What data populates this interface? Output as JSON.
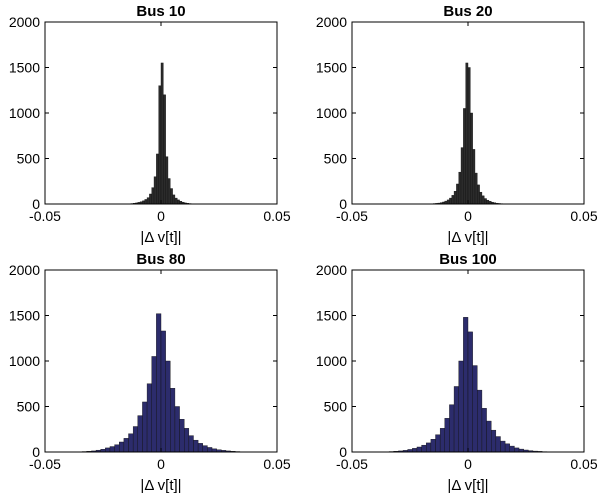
{
  "chart_data": [
    {
      "type": "bar",
      "title": "Bus 10",
      "xlabel": "|Δ v[t]|",
      "ylabel": "",
      "xlim": [
        -0.05,
        0.05
      ],
      "ylim": [
        0,
        2000
      ],
      "xticks": [
        "-0.05",
        "0",
        "0.05"
      ],
      "yticks": [
        "0",
        "500",
        "1000",
        "1500",
        "2000"
      ],
      "bar_color": "#2b2b2b",
      "bin_width": 0.001,
      "bin_centers": [
        -0.0125,
        -0.0115,
        -0.0105,
        -0.0095,
        -0.0085,
        -0.0075,
        -0.0065,
        -0.0055,
        -0.0045,
        -0.0035,
        -0.0025,
        -0.0015,
        -0.0005,
        0.0005,
        0.0015,
        0.0025,
        0.0035,
        0.0045,
        0.0055,
        0.0065,
        0.0075,
        0.0085,
        0.0095,
        0.0105,
        0.0115,
        0.0125
      ],
      "values": [
        5,
        8,
        12,
        18,
        25,
        35,
        50,
        70,
        110,
        180,
        300,
        550,
        1300,
        1550,
        1200,
        520,
        280,
        170,
        100,
        65,
        45,
        30,
        20,
        12,
        8,
        5
      ],
      "grid": false
    },
    {
      "type": "bar",
      "title": "Bus 20",
      "xlabel": "|Δ v[t]|",
      "ylabel": "",
      "xlim": [
        -0.05,
        0.05
      ],
      "ylim": [
        0,
        2000
      ],
      "xticks": [
        "-0.05",
        "0",
        "0.05"
      ],
      "yticks": [
        "0",
        "500",
        "1000",
        "1500",
        "2000"
      ],
      "bar_color": "#2b2b2b",
      "bin_width": 0.001,
      "bin_centers": [
        -0.0145,
        -0.0135,
        -0.0125,
        -0.0115,
        -0.0105,
        -0.0095,
        -0.0085,
        -0.0075,
        -0.0065,
        -0.0055,
        -0.0045,
        -0.0035,
        -0.0025,
        -0.0015,
        -0.0005,
        0.0005,
        0.0015,
        0.0025,
        0.0035,
        0.0045,
        0.0055,
        0.0065,
        0.0075,
        0.0085,
        0.0095,
        0.0105,
        0.0115,
        0.0125,
        0.0135,
        0.0145
      ],
      "values": [
        5,
        7,
        10,
        15,
        22,
        32,
        45,
        65,
        95,
        140,
        220,
        350,
        620,
        1050,
        1550,
        1500,
        1000,
        600,
        340,
        210,
        130,
        90,
        60,
        42,
        30,
        20,
        14,
        9,
        6,
        4
      ],
      "grid": false
    },
    {
      "type": "bar",
      "title": "Bus 80",
      "xlabel": "|Δ v[t]|",
      "ylabel": "",
      "xlim": [
        -0.05,
        0.05
      ],
      "ylim": [
        0,
        2000
      ],
      "xticks": [
        "-0.05",
        "0",
        "0.05"
      ],
      "yticks": [
        "0",
        "500",
        "1000",
        "1500",
        "2000"
      ],
      "bar_color": "#2c2c6c",
      "bin_width": 0.002,
      "bin_centers": [
        -0.033,
        -0.031,
        -0.029,
        -0.027,
        -0.025,
        -0.023,
        -0.021,
        -0.019,
        -0.017,
        -0.015,
        -0.013,
        -0.011,
        -0.009,
        -0.007,
        -0.005,
        -0.003,
        -0.001,
        0.001,
        0.003,
        0.005,
        0.007,
        0.009,
        0.011,
        0.013,
        0.015,
        0.017,
        0.019,
        0.021,
        0.023,
        0.025,
        0.027,
        0.029,
        0.031,
        0.033
      ],
      "values": [
        5,
        8,
        12,
        20,
        30,
        45,
        60,
        80,
        110,
        150,
        200,
        280,
        400,
        550,
        750,
        1050,
        1520,
        1330,
        1000,
        700,
        500,
        360,
        260,
        180,
        130,
        95,
        70,
        50,
        35,
        25,
        18,
        12,
        8,
        5
      ],
      "grid": false
    },
    {
      "type": "bar",
      "title": "Bus 100",
      "xlabel": "|Δ v[t]|",
      "ylabel": "",
      "xlim": [
        -0.05,
        0.05
      ],
      "ylim": [
        0,
        2000
      ],
      "xticks": [
        "-0.05",
        "0",
        "0.05"
      ],
      "yticks": [
        "0",
        "500",
        "1000",
        "1500",
        "2000"
      ],
      "bar_color": "#2c2c6c",
      "bin_width": 0.002,
      "bin_centers": [
        -0.033,
        -0.031,
        -0.029,
        -0.027,
        -0.025,
        -0.023,
        -0.021,
        -0.019,
        -0.017,
        -0.015,
        -0.013,
        -0.011,
        -0.009,
        -0.007,
        -0.005,
        -0.003,
        -0.001,
        0.001,
        0.003,
        0.005,
        0.007,
        0.009,
        0.011,
        0.013,
        0.015,
        0.017,
        0.019,
        0.021,
        0.023,
        0.025,
        0.027,
        0.029,
        0.031,
        0.033
      ],
      "values": [
        5,
        8,
        12,
        18,
        28,
        40,
        55,
        75,
        100,
        140,
        190,
        260,
        370,
        520,
        720,
        1000,
        1480,
        1320,
        950,
        680,
        480,
        340,
        240,
        170,
        120,
        90,
        65,
        45,
        32,
        22,
        15,
        10,
        7,
        4
      ],
      "grid": false
    }
  ]
}
